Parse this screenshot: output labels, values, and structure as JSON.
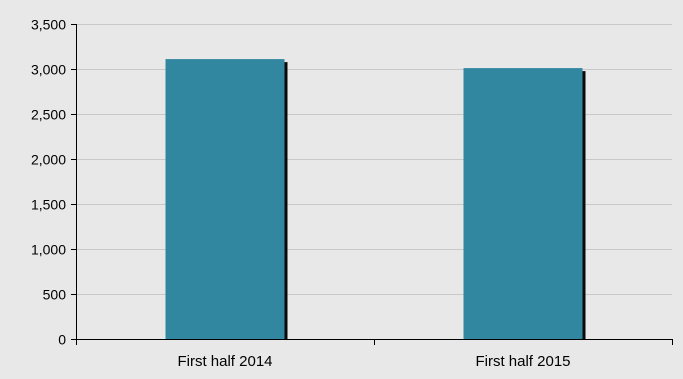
{
  "colors": {
    "background": "#e8e8e8",
    "bar_fill": "#31879f",
    "bar_shadow": "#0a0a0a",
    "gridline": "#c8c8c8",
    "axis": "#000000"
  },
  "chart_data": {
    "type": "bar",
    "title": "",
    "xlabel": "",
    "ylabel": "",
    "categories": [
      "First half 2014",
      "First half 2015"
    ],
    "values": [
      3110,
      3010
    ],
    "ylim": [
      0,
      3500
    ],
    "yticks": [
      0,
      500,
      1000,
      1500,
      2000,
      2500,
      3000,
      3500
    ],
    "ytick_labels": [
      "0",
      "500",
      "1,000",
      "1,500",
      "2,000",
      "2,500",
      "3,000",
      "3,500"
    ],
    "grid": true,
    "legend": "none"
  }
}
